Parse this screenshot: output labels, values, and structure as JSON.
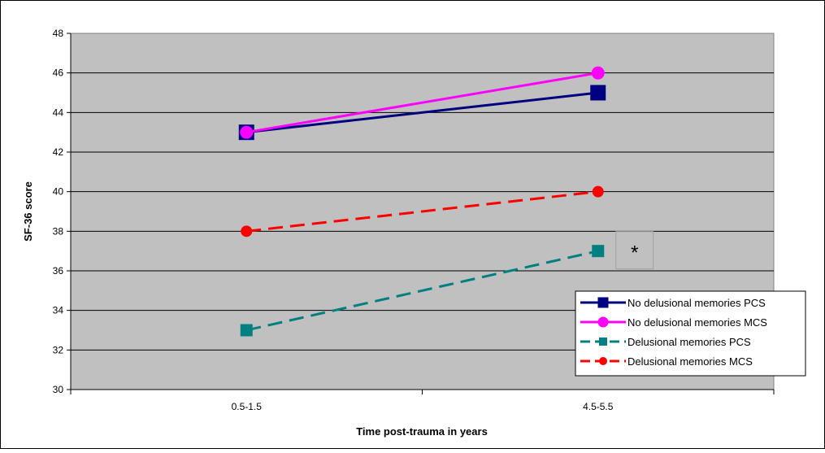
{
  "chart_data": {
    "type": "line",
    "title": "",
    "xlabel": "Time post-trauma in years",
    "ylabel": "SF-36 score",
    "categories": [
      "0.5-1.5",
      "4.5-5.5"
    ],
    "ylim": [
      30,
      48
    ],
    "yticks": [
      30,
      32,
      34,
      36,
      38,
      40,
      42,
      44,
      46,
      48
    ],
    "grid": true,
    "legend_position": "bottom-right",
    "plot_background": "#c0c0c0",
    "series": [
      {
        "name": "No delusional memories PCS",
        "values": [
          43,
          45
        ],
        "color": "#000080",
        "marker": "square",
        "dash": false
      },
      {
        "name": "No delusional memories MCS",
        "values": [
          43,
          46
        ],
        "color": "#ff00ff",
        "marker": "circle",
        "dash": false
      },
      {
        "name": "Delusional memories PCS",
        "values": [
          33,
          37
        ],
        "color": "#008080",
        "marker": "square",
        "dash": true
      },
      {
        "name": "Delusional memories MCS",
        "values": [
          38,
          40
        ],
        "color": "#ff0000",
        "marker": "circle",
        "dash": true
      }
    ],
    "annotations": [
      {
        "text": "*",
        "series": 2,
        "index": 1
      }
    ]
  }
}
